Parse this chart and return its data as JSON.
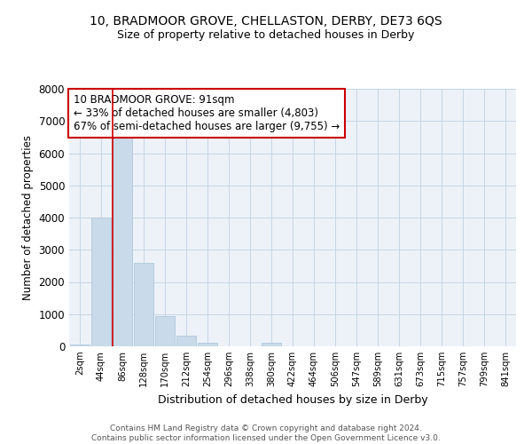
{
  "title": "10, BRADMOOR GROVE, CHELLASTON, DERBY, DE73 6QS",
  "subtitle": "Size of property relative to detached houses in Derby",
  "xlabel": "Distribution of detached houses by size in Derby",
  "ylabel": "Number of detached properties",
  "bar_labels": [
    "2sqm",
    "44sqm",
    "86sqm",
    "128sqm",
    "170sqm",
    "212sqm",
    "254sqm",
    "296sqm",
    "338sqm",
    "380sqm",
    "422sqm",
    "464sqm",
    "506sqm",
    "547sqm",
    "589sqm",
    "631sqm",
    "673sqm",
    "715sqm",
    "757sqm",
    "799sqm",
    "841sqm"
  ],
  "bar_values": [
    50,
    4000,
    6600,
    2600,
    950,
    325,
    100,
    0,
    0,
    100,
    0,
    0,
    0,
    0,
    0,
    0,
    0,
    0,
    0,
    0,
    0
  ],
  "bar_color": "#c9daea",
  "bar_edgecolor": "#b0c8dc",
  "vline_color": "#cc0000",
  "vline_bar_index": 2,
  "ylim": [
    0,
    8000
  ],
  "yticks": [
    0,
    1000,
    2000,
    3000,
    4000,
    5000,
    6000,
    7000,
    8000
  ],
  "annotation_line1": "10 BRADMOOR GROVE: 91sqm",
  "annotation_line2": "← 33% of detached houses are smaller (4,803)",
  "annotation_line3": "67% of semi-detached houses are larger (9,755) →",
  "annotation_box_color": "#cc0000",
  "footer_text": "Contains HM Land Registry data © Crown copyright and database right 2024.\nContains public sector information licensed under the Open Government Licence v3.0.",
  "background_color": "#edf2f8",
  "grid_color": "#c5d5e5"
}
